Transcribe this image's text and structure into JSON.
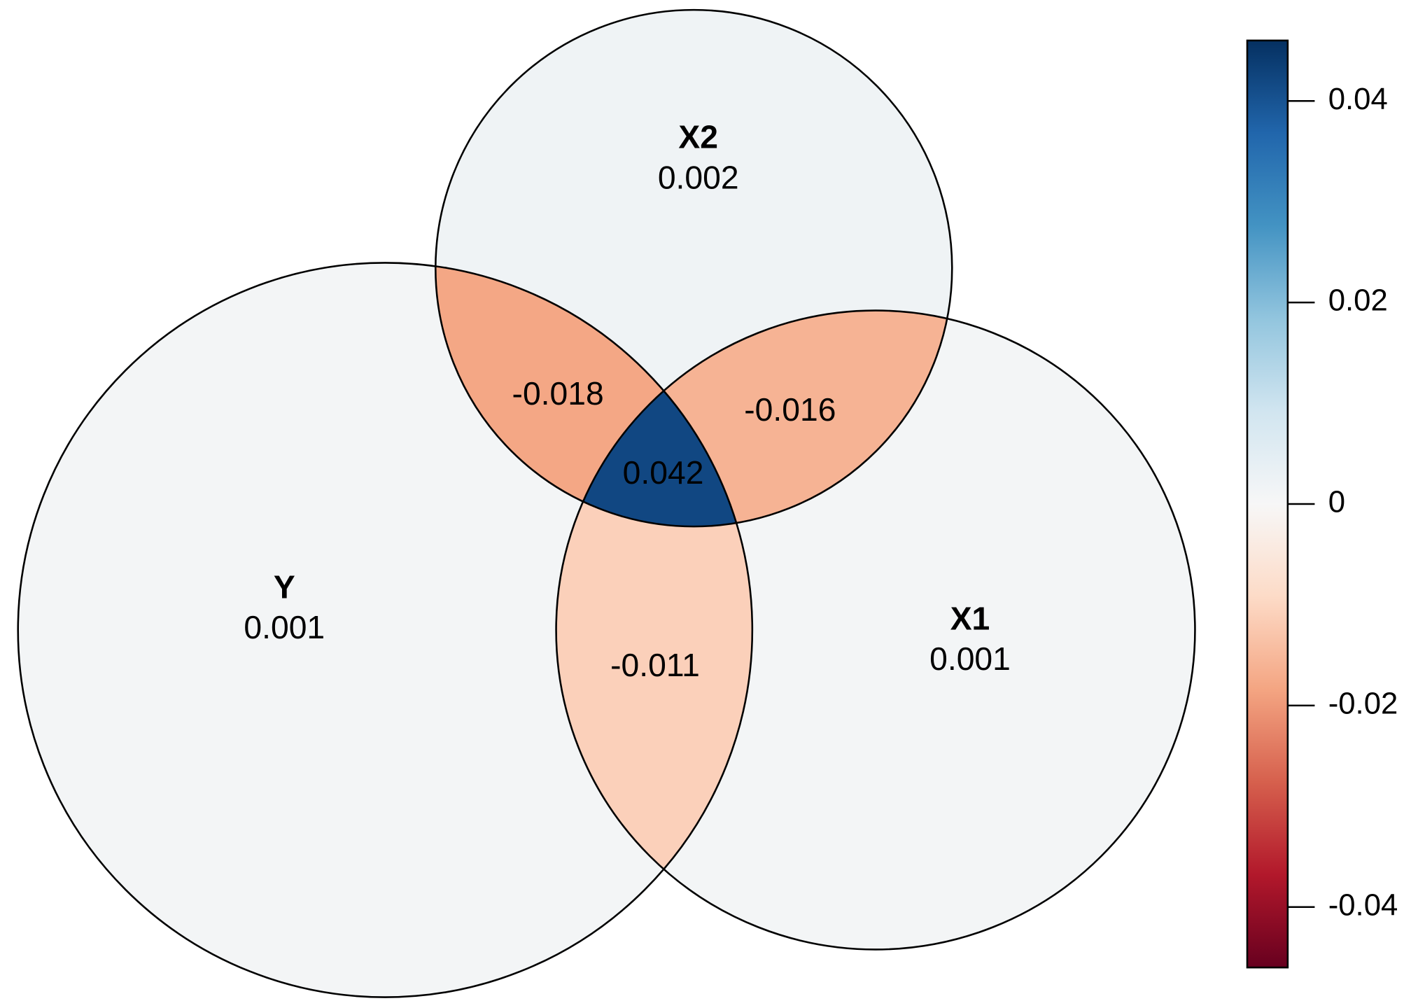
{
  "chart_data": {
    "type": "venn",
    "sets": [
      {
        "name": "Y",
        "value": 0.001
      },
      {
        "name": "X1",
        "value": 0.001
      },
      {
        "name": "X2",
        "value": 0.002
      }
    ],
    "intersections": [
      {
        "value": -0.018
      },
      {
        "value": -0.016
      },
      {
        "value": -0.011
      },
      {
        "value": 0.042
      }
    ],
    "colormap": [
      "#67001f",
      "#b2182b",
      "#d6604d",
      "#f4a582",
      "#fddbc7",
      "#f7f7f7",
      "#d1e5f0",
      "#92c5de",
      "#4393c3",
      "#2166ac",
      "#053061"
    ],
    "ylim": [
      -0.046,
      0.046
    ],
    "yticks": [
      -0.04,
      -0.02,
      0,
      0.02,
      0.04
    ]
  }
}
